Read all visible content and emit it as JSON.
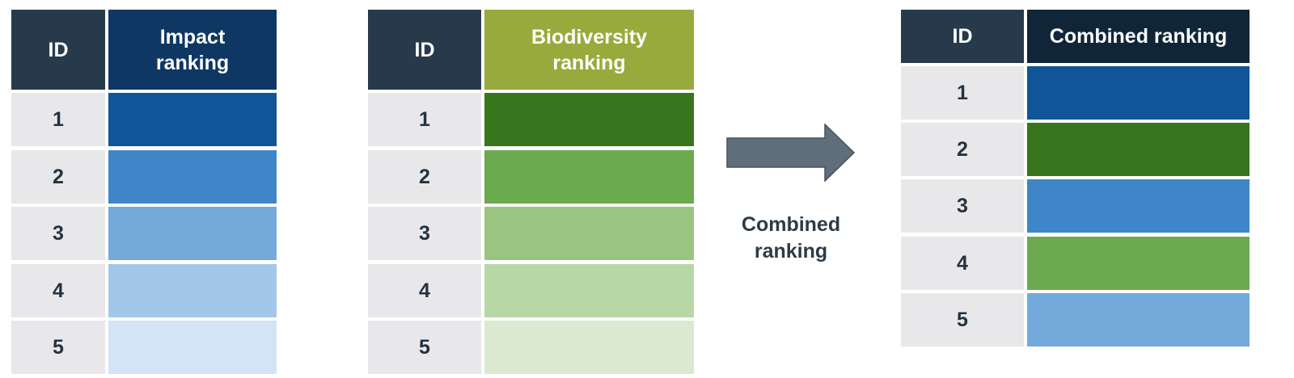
{
  "colors": {
    "id_header": "#263a4b",
    "id_cell": "#e8e8ea",
    "arrow": "#606e7b"
  },
  "tables": [
    {
      "id_header": "ID",
      "rank_header": "Impact ranking",
      "rank_header_color": "#0e3763",
      "rows": [
        {
          "id": "1",
          "color": "#0f5597"
        },
        {
          "id": "2",
          "color": "#3f86c8"
        },
        {
          "id": "3",
          "color": "#73a9db"
        },
        {
          "id": "4",
          "color": "#a3c7e8"
        },
        {
          "id": "5",
          "color": "#d2e4f5"
        }
      ]
    },
    {
      "id_header": "ID",
      "rank_header": "Biodiversity ranking",
      "rank_header_color": "#98aa3c",
      "rows": [
        {
          "id": "1",
          "color": "#37761c"
        },
        {
          "id": "2",
          "color": "#6caa4f"
        },
        {
          "id": "3",
          "color": "#99c581"
        },
        {
          "id": "4",
          "color": "#b7d8a6"
        },
        {
          "id": "5",
          "color": "#d9ead0"
        }
      ]
    },
    {
      "id_header": "ID",
      "rank_header": "Combined ranking",
      "rank_header_color": "#102538",
      "rows": [
        {
          "id": "1",
          "color": "#0f5597"
        },
        {
          "id": "2",
          "color": "#37761c"
        },
        {
          "id": "3",
          "color": "#3f86c8"
        },
        {
          "id": "4",
          "color": "#6caa4f"
        },
        {
          "id": "5",
          "color": "#73a9db"
        }
      ]
    }
  ],
  "arrow_caption": "Combined ranking"
}
